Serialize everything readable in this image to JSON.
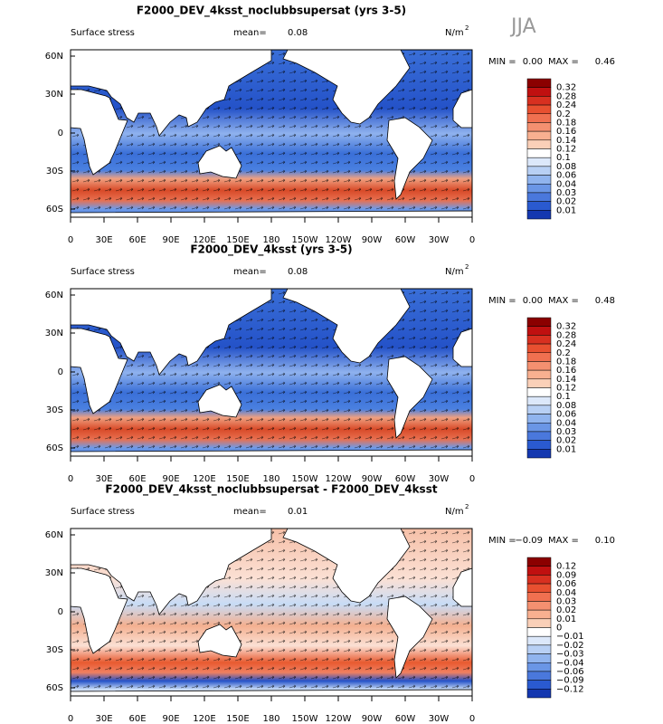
{
  "season": "JJA",
  "lat_ticks": [
    "60N",
    "30N",
    "0",
    "30S",
    "60S"
  ],
  "lon_ticks": [
    "0",
    "30E",
    "60E",
    "90E",
    "120E",
    "150E",
    "180",
    "150W",
    "120W",
    "90W",
    "60W",
    "30W",
    "0"
  ],
  "panels": [
    {
      "title": "F2000_DEV_4ksst_noclubbsupersat (yrs 3-5)",
      "field": "Surface stress",
      "mean_label": "mean=",
      "mean": "0.08",
      "units": "N/m",
      "units_exp": "2",
      "min_label": "MIN =",
      "min": "0.00",
      "max_label": "MAX =",
      "max": "0.46",
      "levels": [
        "0.32",
        "0.28",
        "0.24",
        "0.2",
        "0.18",
        "0.16",
        "0.14",
        "0.12",
        "0.1",
        "0.08",
        "0.06",
        "0.04",
        "0.03",
        "0.02",
        "0.01"
      ]
    },
    {
      "title": "F2000_DEV_4ksst (yrs 3-5)",
      "field": "Surface stress",
      "mean_label": "mean=",
      "mean": "0.08",
      "units": "N/m",
      "units_exp": "2",
      "min_label": "MIN =",
      "min": "0.00",
      "max_label": "MAX =",
      "max": "0.48",
      "levels": [
        "0.32",
        "0.28",
        "0.24",
        "0.2",
        "0.18",
        "0.16",
        "0.14",
        "0.12",
        "0.1",
        "0.08",
        "0.06",
        "0.04",
        "0.03",
        "0.02",
        "0.01"
      ]
    },
    {
      "title": "F2000_DEV_4ksst_noclubbsupersat - F2000_DEV_4ksst",
      "field": "Surface stress",
      "mean_label": "mean=",
      "mean": "0.01",
      "units": "N/m",
      "units_exp": "2",
      "min_label": "MIN =",
      "min": "−0.09",
      "max_label": "MAX =",
      "max": "0.10",
      "levels": [
        "0.12",
        "0.09",
        "0.06",
        "0.04",
        "0.03",
        "0.02",
        "0.01",
        "0",
        "−0.01",
        "−0.02",
        "−0.03",
        "−0.04",
        "−0.06",
        "−0.09",
        "−0.12"
      ]
    }
  ]
}
